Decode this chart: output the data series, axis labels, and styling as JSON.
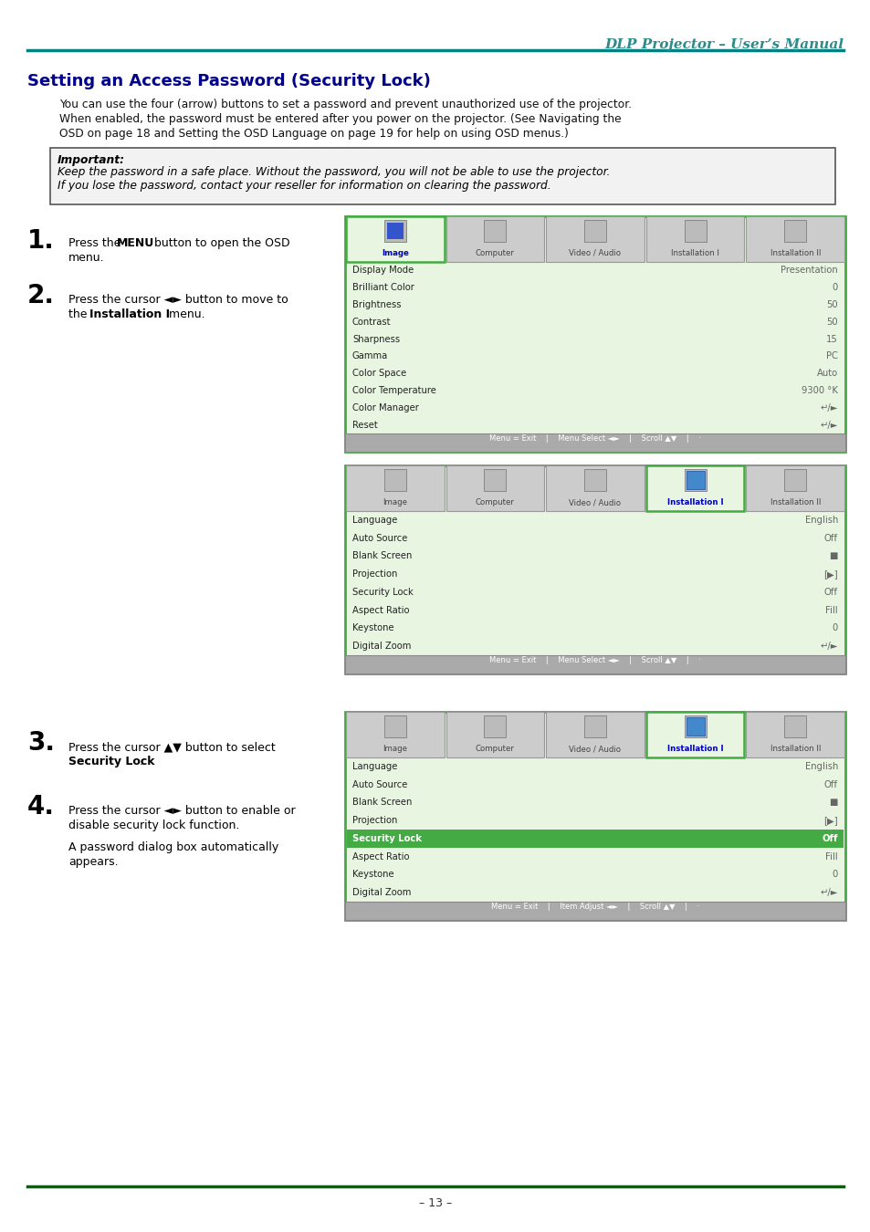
{
  "page_bg": "#ffffff",
  "header_title": "DLP Projector – User’s Manual",
  "header_color": "#2e8b8b",
  "header_line_color": "#008080",
  "section_title": "Setting an Access Password (Security Lock)",
  "section_title_color": "#00008b",
  "para1_lines": [
    "You can use the four (arrow) buttons to set a password and prevent unauthorized use of the projector.",
    "When enabled, the password must be entered after you power on the projector. (See Navigating the",
    "OSD on page 18 and Setting the OSD Language on page 19 for help on using OSD menus.)"
  ],
  "important_label": "Important:",
  "important_lines": [
    "Keep the password in a safe place. Without the password, you will not be able to use the projector.",
    "If you lose the password, contact your reseller for information on clearing the password."
  ],
  "important_bg": "#f2f2f2",
  "important_border": "#555555",
  "green_border": "#44aa44",
  "light_green_bg": "#e8f5e0",
  "tab_bg_inactive": "#cccccc",
  "tab_border_inactive": "#999999",
  "footer_text": "– 13 –",
  "footer_line_color": "#006600",
  "tab_labels": [
    "Image",
    "Computer",
    "Video / Audio",
    "Installation I",
    "Installation II"
  ],
  "osd1_active_tab": 0,
  "osd1_items": [
    [
      "Display Mode",
      "Presentation"
    ],
    [
      "Brilliant Color",
      "0"
    ],
    [
      "Brightness",
      "50"
    ],
    [
      "Contrast",
      "50"
    ],
    [
      "Sharpness",
      "15"
    ],
    [
      "Gamma",
      "PC"
    ],
    [
      "Color Space",
      "Auto"
    ],
    [
      "Color Temperature",
      "9300 °K"
    ],
    [
      "Color Manager",
      "↵/►"
    ],
    [
      "Reset",
      "↵/►"
    ]
  ],
  "osd1_footer": "Menu = Exit    |    Menu Select ◄►    |    Scroll ▲▼    |    ·",
  "osd2_active_tab": 3,
  "osd2_items": [
    [
      "Language",
      "English"
    ],
    [
      "Auto Source",
      "Off"
    ],
    [
      "Blank Screen",
      "■"
    ],
    [
      "Projection",
      "[▶]"
    ],
    [
      "Security Lock",
      "Off"
    ],
    [
      "Aspect Ratio",
      "Fill"
    ],
    [
      "Keystone",
      "0"
    ],
    [
      "Digital Zoom",
      "↵/►"
    ]
  ],
  "osd2_footer": "Menu = Exit    |    Menu Select ◄►    |    Scroll ▲▼    |    ·",
  "osd3_active_tab": 3,
  "osd3_items": [
    [
      "Language",
      "English"
    ],
    [
      "Auto Source",
      "Off"
    ],
    [
      "Blank Screen",
      "■"
    ],
    [
      "Projection",
      "[▶]"
    ],
    [
      "Security Lock",
      "Off"
    ],
    [
      "Aspect Ratio",
      "Fill"
    ],
    [
      "Keystone",
      "0"
    ],
    [
      "Digital Zoom",
      "↵/►"
    ]
  ],
  "osd3_footer": "Menu = Exit    |    Item Adjust ◄►    |    Scroll ▲▼    |    ·",
  "osd3_highlight_row": 4,
  "highlight_color": "#44aa44",
  "step1_bold": "MENU",
  "step2_bold": "Installation I",
  "step3_bold": "Security Lock",
  "step4_bold1": "",
  "step4_bold2": ""
}
